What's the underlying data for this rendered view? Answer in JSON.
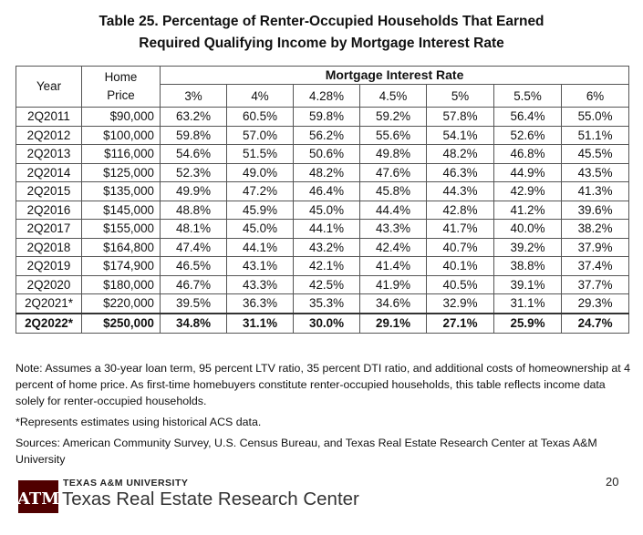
{
  "title": {
    "line1": "Table 25. Percentage of Renter-Occupied Households That Earned",
    "line2": "Required Qualifying Income by Mortgage Interest Rate"
  },
  "table": {
    "group_header": "Mortgage Interest Rate",
    "col_year": "Year",
    "col_price_line1": "Home",
    "col_price_line2": "Price",
    "rates": [
      "3%",
      "4%",
      "4.28%",
      "4.5%",
      "5%",
      "5.5%",
      "6%"
    ],
    "rows": [
      {
        "year": "2Q2011",
        "price": "$90,000",
        "values": [
          "63.2%",
          "60.5%",
          "59.8%",
          "59.2%",
          "57.8%",
          "56.4%",
          "55.0%"
        ]
      },
      {
        "year": "2Q2012",
        "price": "$100,000",
        "values": [
          "59.8%",
          "57.0%",
          "56.2%",
          "55.6%",
          "54.1%",
          "52.6%",
          "51.1%"
        ]
      },
      {
        "year": "2Q2013",
        "price": "$116,000",
        "values": [
          "54.6%",
          "51.5%",
          "50.6%",
          "49.8%",
          "48.2%",
          "46.8%",
          "45.5%"
        ]
      },
      {
        "year": "2Q2014",
        "price": "$125,000",
        "values": [
          "52.3%",
          "49.0%",
          "48.2%",
          "47.6%",
          "46.3%",
          "44.9%",
          "43.5%"
        ]
      },
      {
        "year": "2Q2015",
        "price": "$135,000",
        "values": [
          "49.9%",
          "47.2%",
          "46.4%",
          "45.8%",
          "44.3%",
          "42.9%",
          "41.3%"
        ]
      },
      {
        "year": "2Q2016",
        "price": "$145,000",
        "values": [
          "48.8%",
          "45.9%",
          "45.0%",
          "44.4%",
          "42.8%",
          "41.2%",
          "39.6%"
        ]
      },
      {
        "year": "2Q2017",
        "price": "$155,000",
        "values": [
          "48.1%",
          "45.0%",
          "44.1%",
          "43.3%",
          "41.7%",
          "40.0%",
          "38.2%"
        ]
      },
      {
        "year": "2Q2018",
        "price": "$164,800",
        "values": [
          "47.4%",
          "44.1%",
          "43.2%",
          "42.4%",
          "40.7%",
          "39.2%",
          "37.9%"
        ]
      },
      {
        "year": "2Q2019",
        "price": "$174,900",
        "values": [
          "46.5%",
          "43.1%",
          "42.1%",
          "41.4%",
          "40.1%",
          "38.8%",
          "37.4%"
        ]
      },
      {
        "year": "2Q2020",
        "price": "$180,000",
        "values": [
          "46.7%",
          "43.3%",
          "42.5%",
          "41.9%",
          "40.5%",
          "39.1%",
          "37.7%"
        ]
      },
      {
        "year": "2Q2021*",
        "price": "$220,000",
        "values": [
          "39.5%",
          "36.3%",
          "35.3%",
          "34.6%",
          "32.9%",
          "31.1%",
          "29.3%"
        ]
      },
      {
        "year": "2Q2022*",
        "price": "$250,000",
        "values": [
          "34.8%",
          "31.1%",
          "30.0%",
          "29.1%",
          "27.1%",
          "25.9%",
          "24.7%"
        ]
      }
    ]
  },
  "notes": {
    "note": "Note: Assumes a 30-year loan term, 95 percent LTV ratio, 35 percent DTI ratio, and additional costs of homeownership at 4 percent of home price. As first-time homebuyers constitute renter-occupied households, this table reflects income data solely for renter-occupied households.",
    "estimate": "*Represents estimates using historical ACS data.",
    "sources": "Sources: American Community Survey, U.S. Census Bureau, and Texas Real Estate Research Center at Texas A&M University"
  },
  "footer": {
    "university": "TEXAS A&M UNIVERSITY",
    "center": "Texas Real Estate Research Center",
    "page": "20",
    "logo_text": "ATM"
  },
  "colors": {
    "logo": "#500000"
  }
}
